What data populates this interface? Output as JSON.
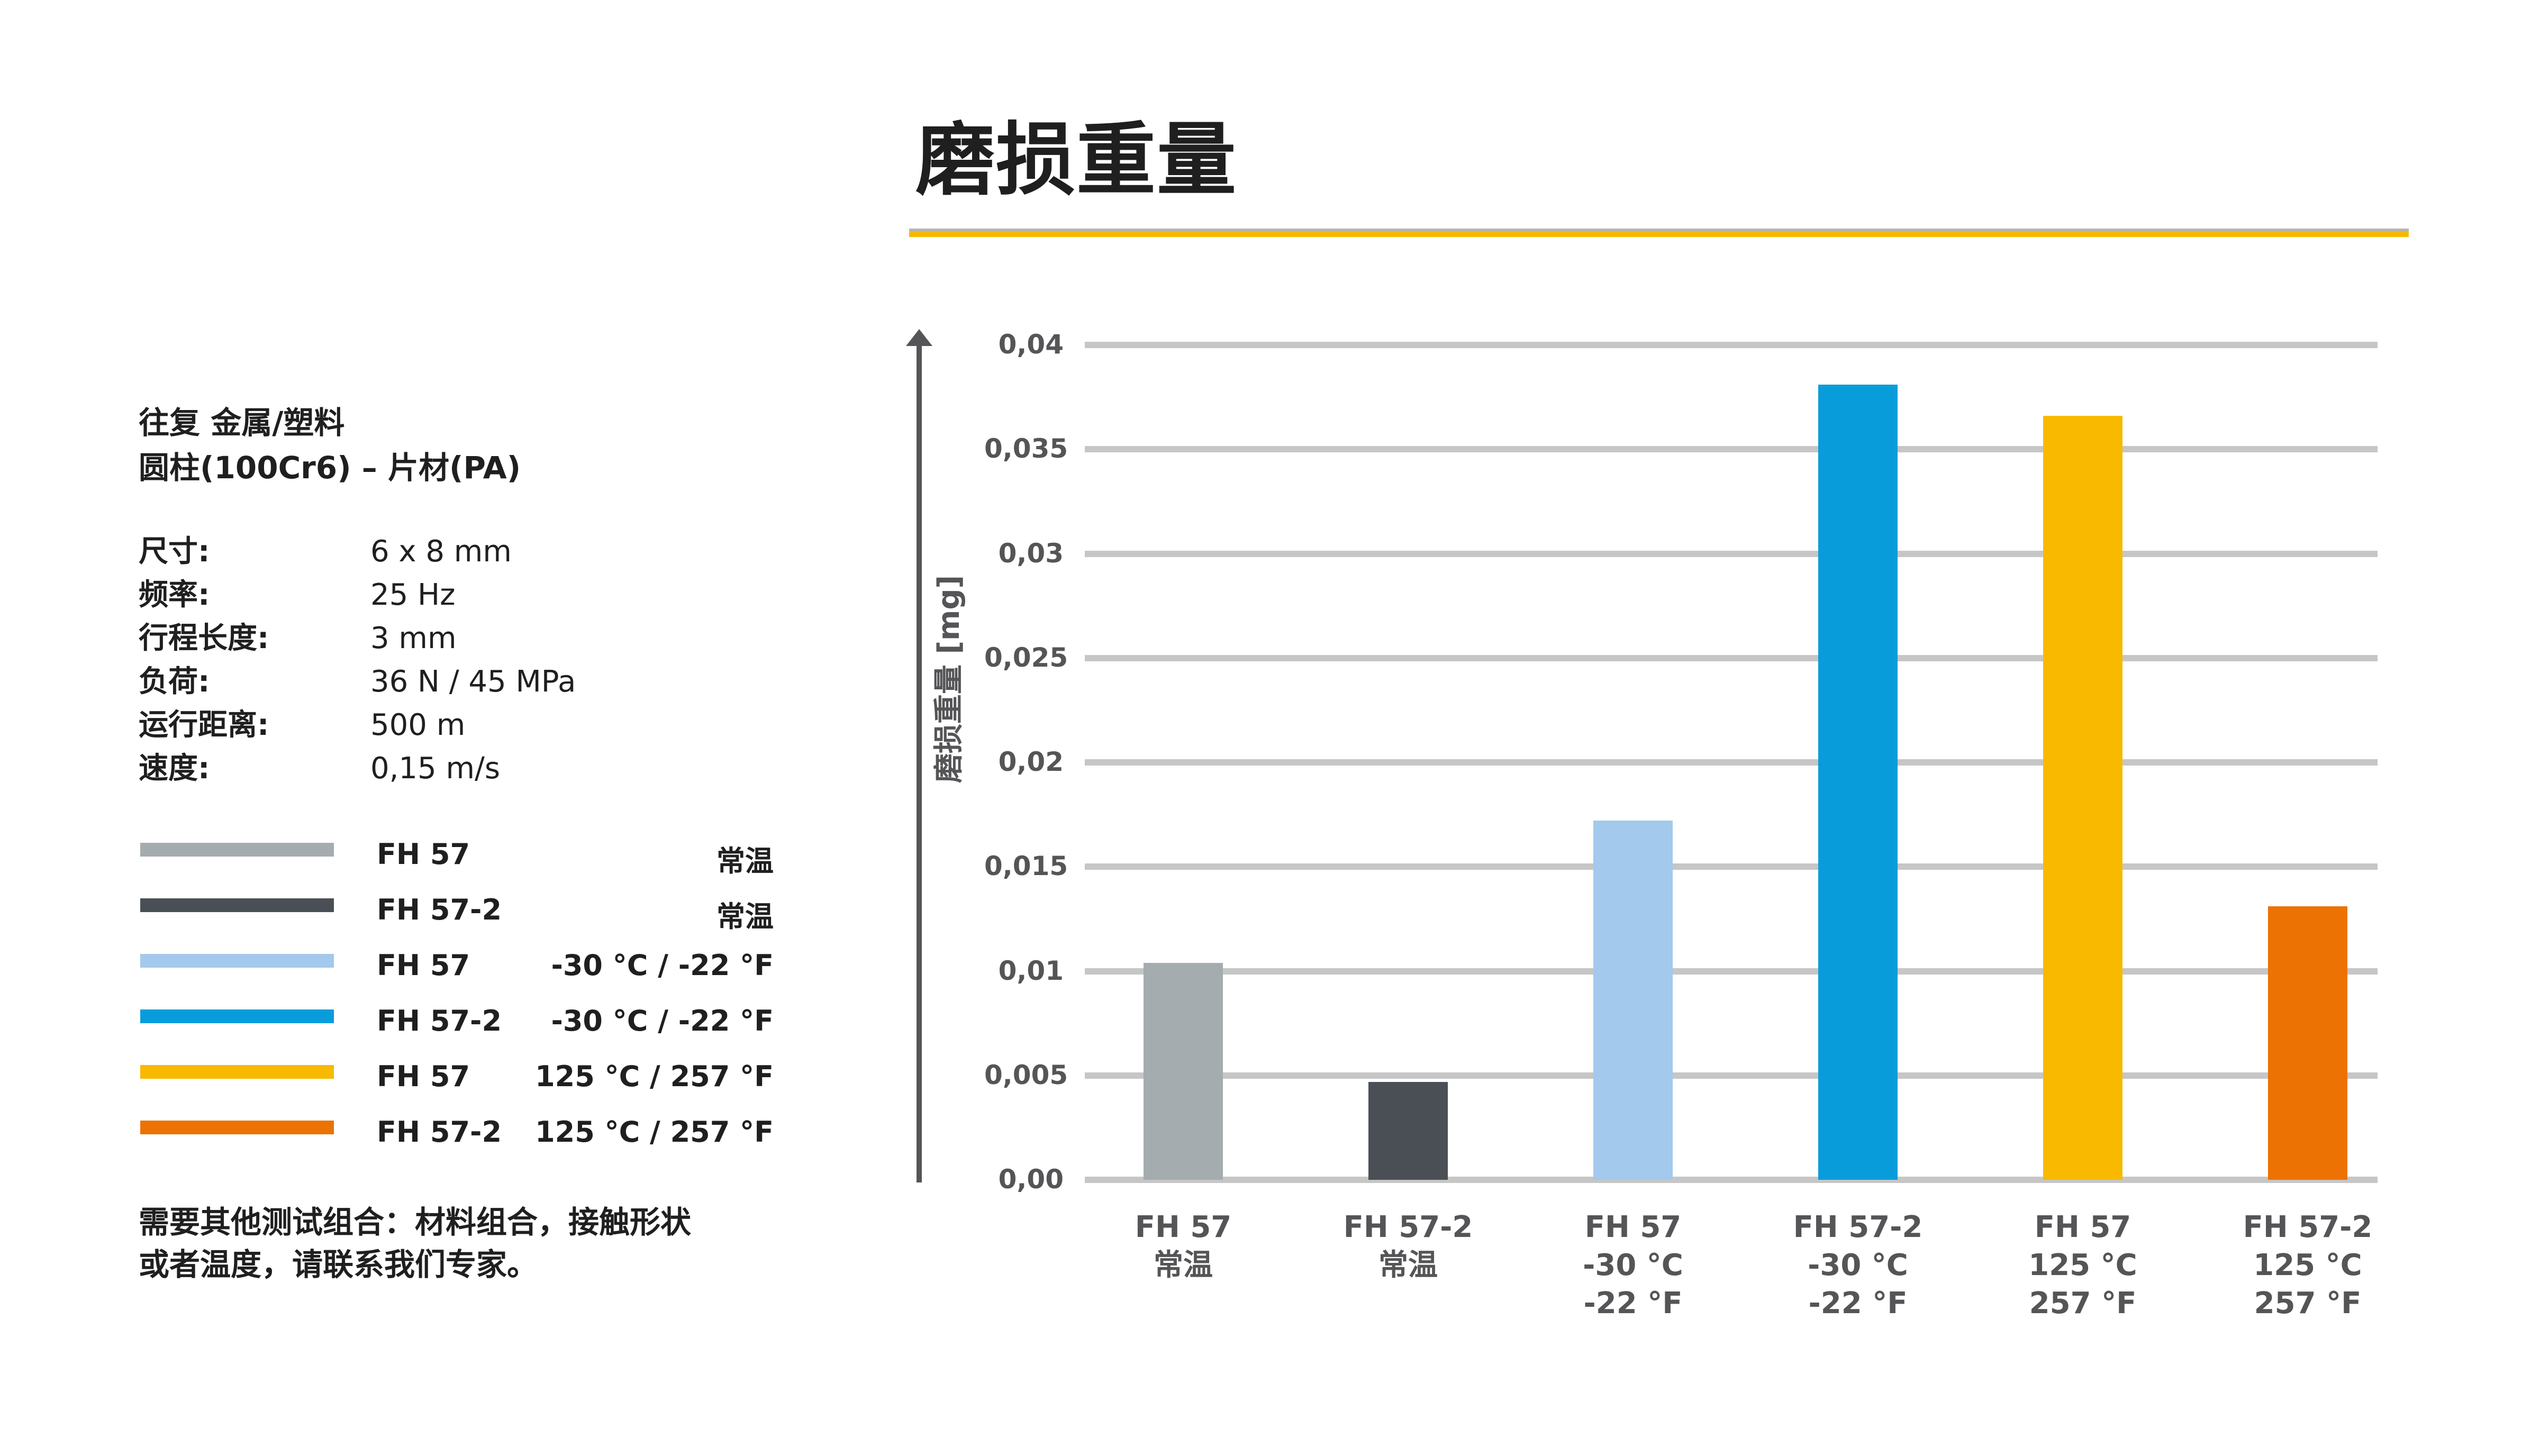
{
  "title": "磨损重量",
  "info": {
    "setup_line1": "往复 金属/塑料",
    "setup_line2": "圆柱(100Cr6) – 片材(PA)",
    "params": [
      {
        "label": "尺寸:",
        "value": "6 x 8 mm"
      },
      {
        "label": "频率:",
        "value": "25 Hz"
      },
      {
        "label": "行程长度:",
        "value": "3 mm"
      },
      {
        "label": "负荷:",
        "value": "36 N / 45 MPa"
      },
      {
        "label": "运行距离:",
        "value": "500 m"
      },
      {
        "label": "速度:",
        "value": "0,15 m/s"
      }
    ],
    "footnote_line1": "需要其他测试组合：材料组合，接触形状",
    "footnote_line2": "或者温度，请联系我们专家。"
  },
  "legend": [
    {
      "name": "FH 57",
      "condition": "常温",
      "color": "#a4acaf"
    },
    {
      "name": "FH 57-2",
      "condition": "常温",
      "color": "#4a4f55"
    },
    {
      "name": "FH 57",
      "condition": "-30 °C / -22 °F",
      "color": "#a3c9ec"
    },
    {
      "name": "FH 57-2",
      "condition": "-30 °C / -22 °F",
      "color": "#099cdb"
    },
    {
      "name": "FH 57",
      "condition": "125 °C / 257 °F",
      "color": "#f9b900"
    },
    {
      "name": "FH 57-2",
      "condition": "125 °C / 257 °F",
      "color": "#ec7203"
    }
  ],
  "chart": {
    "y_label": "磨损重量 [mg]",
    "ticks": [
      "0,04",
      "0,035",
      "0,03",
      "0,025",
      "0,02",
      "0,015",
      "0,01",
      "0,005",
      "0,00"
    ],
    "x_labels": [
      "FH 57\n常温",
      "FH 57-2\n常温",
      "FH 57\n-30 °C\n-22 °F",
      "FH 57-2\n-30 °C\n-22 °F",
      "FH 57\n125 °C\n257 °F",
      "FH 57-2\n125 °C\n257 °F"
    ]
  },
  "chart_data": {
    "type": "bar",
    "title": "磨损重量",
    "xlabel": "",
    "ylabel": "磨损重量 [mg]",
    "categories": [
      "FH 57 常温",
      "FH 57-2 常温",
      "FH 57 -30 °C / -22 °F",
      "FH 57-2 -30 °C / -22 °F",
      "FH 57 125 °C / 257 °F",
      "FH 57-2 125 °C / 257 °F"
    ],
    "values": [
      0.0104,
      0.0047,
      0.0172,
      0.0381,
      0.0366,
      0.0131
    ],
    "colors": [
      "#a4acaf",
      "#4a4f55",
      "#a3c9ec",
      "#099cdb",
      "#f9b900",
      "#ec7203"
    ],
    "ylim": [
      0,
      0.04
    ],
    "yticks": [
      0,
      0.005,
      0.01,
      0.015,
      0.02,
      0.025,
      0.03,
      0.035,
      0.04
    ],
    "grid": true,
    "legend_position": "left"
  }
}
